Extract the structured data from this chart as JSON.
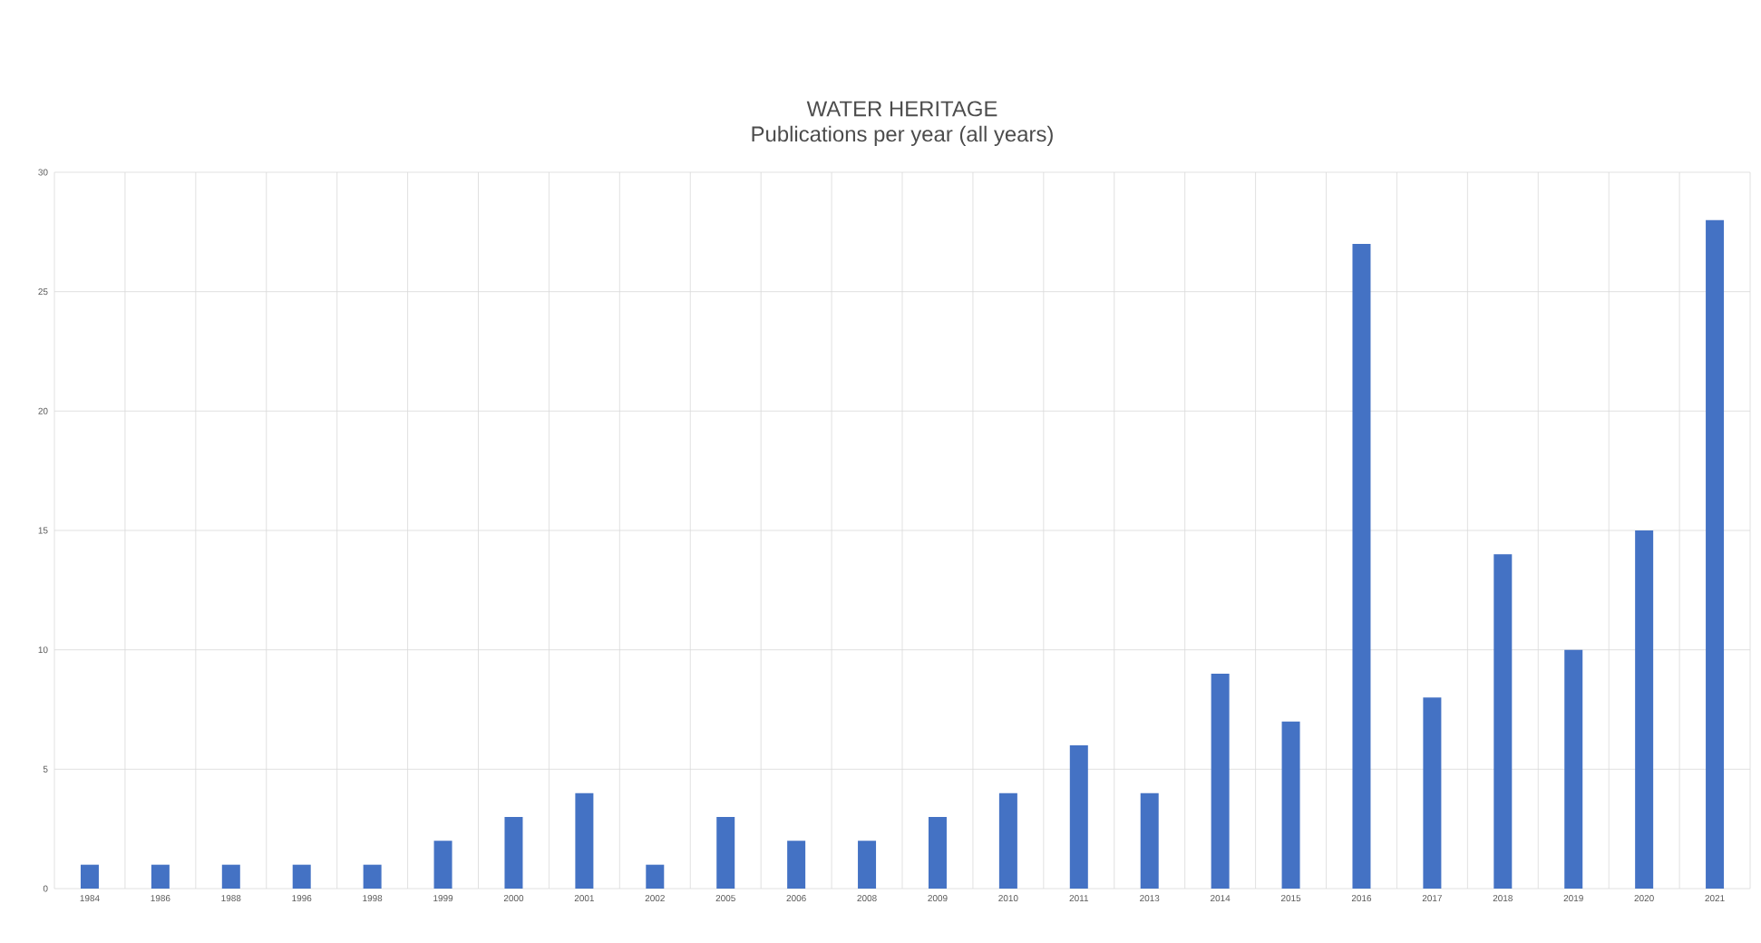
{
  "chart_data": {
    "type": "bar",
    "title": "WATER HERITAGE",
    "subtitle": "Publications per year (all years)",
    "categories": [
      "1984",
      "1986",
      "1988",
      "1996",
      "1998",
      "1999",
      "2000",
      "2001",
      "2002",
      "2005",
      "2006",
      "2008",
      "2009",
      "2010",
      "2011",
      "2013",
      "2014",
      "2015",
      "2016",
      "2017",
      "2018",
      "2019",
      "2020",
      "2021"
    ],
    "values": [
      1,
      1,
      1,
      1,
      1,
      2,
      3,
      4,
      1,
      3,
      2,
      2,
      3,
      4,
      6,
      4,
      9,
      7,
      27,
      8,
      14,
      10,
      15,
      28
    ],
    "color": "#4472c4",
    "ylim": [
      0,
      30
    ],
    "yticks": [
      0,
      5,
      10,
      15,
      20,
      25,
      30
    ],
    "grid": true
  }
}
